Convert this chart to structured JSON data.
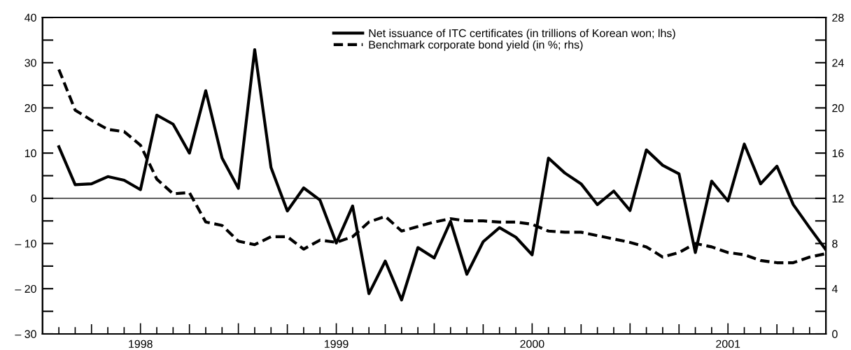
{
  "chart_data": {
    "type": "line",
    "x": [
      "1997-08",
      "1997-09",
      "1997-10",
      "1997-11",
      "1997-12",
      "1998-01",
      "1998-02",
      "1998-03",
      "1998-04",
      "1998-05",
      "1998-06",
      "1998-07",
      "1998-08",
      "1998-09",
      "1998-10",
      "1998-11",
      "1998-12",
      "1999-01",
      "1999-02",
      "1999-03",
      "1999-04",
      "1999-05",
      "1999-06",
      "1999-07",
      "1999-08",
      "1999-09",
      "1999-10",
      "1999-11",
      "1999-12",
      "2000-01",
      "2000-02",
      "2000-03",
      "2000-04",
      "2000-05",
      "2000-06",
      "2000-07",
      "2000-08",
      "2000-09",
      "2000-10",
      "2000-11",
      "2000-12",
      "2001-01",
      "2001-02",
      "2001-03",
      "2001-04",
      "2001-05",
      "2001-06",
      "2001-07"
    ],
    "series": [
      {
        "name": "Net issuance of ITC certificates (in trillions of Korean won; lhs)",
        "color": "#000000",
        "line_style": "solid",
        "values": [
          11.4,
          3.0,
          3.2,
          4.8,
          4.0,
          1.9,
          18.4,
          16.4,
          10.0,
          23.8,
          8.9,
          2.2,
          32.9,
          6.8,
          -2.8,
          2.3,
          -0.4,
          -9.9,
          -1.7,
          -21.1,
          -13.9,
          -22.5,
          -10.9,
          -13.2,
          -5.1,
          -16.8,
          -9.6,
          -6.5,
          -8.6,
          -12.5,
          8.9,
          5.6,
          3.2,
          -1.4,
          1.6,
          -2.7,
          10.7,
          7.3,
          5.4,
          -12.0,
          3.8,
          -0.6,
          12.0,
          3.2,
          7.1,
          -1.4,
          -6.5,
          -11.4
        ]
      },
      {
        "name": "Benchmark corporate bond yield (in %; rhs)",
        "color": "#000000",
        "line_style": "dashed",
        "axis": "y2",
        "values": [
          23.4,
          19.8,
          18.9,
          18.1,
          17.9,
          16.7,
          13.7,
          12.4,
          12.5,
          9.9,
          9.6,
          8.2,
          7.9,
          8.6,
          8.6,
          7.5,
          8.3,
          8.1,
          8.6,
          9.9,
          10.4,
          9.1,
          9.5,
          9.9,
          10.2,
          10.0,
          10.0,
          9.9,
          9.9,
          9.7,
          9.1,
          9.0,
          9.0,
          8.7,
          8.4,
          8.1,
          7.7,
          6.8,
          7.2,
          8.0,
          7.7,
          7.2,
          7.0,
          6.5,
          6.3,
          6.3,
          6.8,
          7.1
        ]
      }
    ],
    "xlim": [
      "1997-07",
      "2001-07"
    ],
    "xticks": [
      {
        "value": "1997-08",
        "label": null
      },
      {
        "value": "1997-09",
        "label": null
      },
      {
        "value": "1997-10",
        "label": null
      },
      {
        "value": "1997-11",
        "label": null
      },
      {
        "value": "1997-12",
        "label": null
      },
      {
        "value": "1998-01",
        "label": "1998"
      },
      {
        "value": "1998-02",
        "label": null
      },
      {
        "value": "1998-03",
        "label": null
      },
      {
        "value": "1998-04",
        "label": null
      },
      {
        "value": "1998-05",
        "label": null
      },
      {
        "value": "1998-06",
        "label": null
      },
      {
        "value": "1998-07",
        "label": null
      },
      {
        "value": "1998-08",
        "label": null
      },
      {
        "value": "1998-09",
        "label": null
      },
      {
        "value": "1998-10",
        "label": null
      },
      {
        "value": "1998-11",
        "label": null
      },
      {
        "value": "1998-12",
        "label": null
      },
      {
        "value": "1999-01",
        "label": "1999"
      },
      {
        "value": "1999-02",
        "label": null
      },
      {
        "value": "1999-03",
        "label": null
      },
      {
        "value": "1999-04",
        "label": null
      },
      {
        "value": "1999-05",
        "label": null
      },
      {
        "value": "1999-06",
        "label": null
      },
      {
        "value": "1999-07",
        "label": null
      },
      {
        "value": "1999-08",
        "label": null
      },
      {
        "value": "1999-09",
        "label": null
      },
      {
        "value": "1999-10",
        "label": null
      },
      {
        "value": "1999-11",
        "label": null
      },
      {
        "value": "1999-12",
        "label": null
      },
      {
        "value": "2000-01",
        "label": "2000"
      },
      {
        "value": "2000-02",
        "label": null
      },
      {
        "value": "2000-03",
        "label": null
      },
      {
        "value": "2000-04",
        "label": null
      },
      {
        "value": "2000-05",
        "label": null
      },
      {
        "value": "2000-06",
        "label": null
      },
      {
        "value": "2000-07",
        "label": null
      },
      {
        "value": "2000-08",
        "label": null
      },
      {
        "value": "2000-09",
        "label": null
      },
      {
        "value": "2000-10",
        "label": null
      },
      {
        "value": "2000-11",
        "label": null
      },
      {
        "value": "2000-12",
        "label": null
      },
      {
        "value": "2001-01",
        "label": "2001"
      },
      {
        "value": "2001-02",
        "label": null
      },
      {
        "value": "2001-03",
        "label": null
      },
      {
        "value": "2001-04",
        "label": null
      },
      {
        "value": "2001-05",
        "label": null
      },
      {
        "value": "2001-06",
        "label": null
      }
    ],
    "ylim": [
      -30,
      40
    ],
    "yticks": [
      {
        "value": -30,
        "label": "– 30"
      },
      {
        "value": -25,
        "label": null
      },
      {
        "value": -20,
        "label": "– 20"
      },
      {
        "value": -15,
        "label": null
      },
      {
        "value": -10,
        "label": "– 10"
      },
      {
        "value": -5,
        "label": null
      },
      0,
      {
        "value": 5,
        "label": null
      },
      10,
      {
        "value": 15,
        "label": null
      },
      20,
      {
        "value": 25,
        "label": null
      },
      30,
      {
        "value": 35,
        "label": null
      },
      40
    ],
    "y2lim": [
      0,
      28
    ],
    "y2ticks": [
      0,
      {
        "value": 2,
        "label": null
      },
      4,
      {
        "value": 6,
        "label": null
      },
      8,
      {
        "value": 10,
        "label": null
      },
      12,
      {
        "value": 14,
        "label": null
      },
      16,
      {
        "value": 18,
        "label": null
      },
      20,
      {
        "value": 22,
        "label": null
      },
      24,
      {
        "value": 26,
        "label": null
      },
      28
    ],
    "ref_lines": [
      {
        "axis": "y",
        "value": 0,
        "label": null,
        "color": "#000000",
        "line_style": "solid"
      }
    ],
    "legend": "top",
    "grid": false,
    "marker": "none"
  }
}
